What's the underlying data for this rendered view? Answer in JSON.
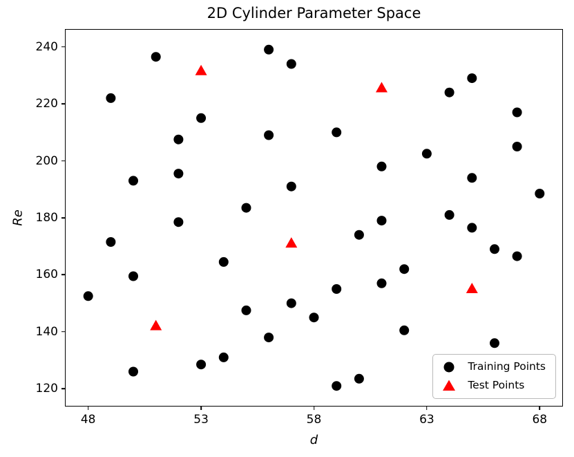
{
  "figure": {
    "title": "2D Cylinder Parameter Space",
    "xlabel": "d",
    "ylabel": "Re"
  },
  "legend": {
    "items": [
      {
        "label": "Training Points",
        "marker": "circle",
        "color": "#000000"
      },
      {
        "label": "Test Points",
        "marker": "triangle",
        "color": "#ff0000"
      }
    ]
  },
  "chart_data": {
    "type": "scatter",
    "title": "2D Cylinder Parameter Space",
    "xlabel": "d",
    "ylabel": "Re",
    "xlim": [
      47,
      69
    ],
    "ylim": [
      114,
      246
    ],
    "xticks": [
      48,
      53,
      58,
      63,
      68
    ],
    "yticks": [
      120,
      140,
      160,
      180,
      200,
      220,
      240
    ],
    "grid": false,
    "legend_position": "lower right",
    "series": [
      {
        "name": "Training Points",
        "marker": "circle",
        "color": "#000000",
        "points": [
          [
            48,
            152.5
          ],
          [
            49,
            222
          ],
          [
            49,
            171.5
          ],
          [
            50,
            193
          ],
          [
            50,
            159.5
          ],
          [
            50,
            126
          ],
          [
            51,
            236.5
          ],
          [
            52,
            207.5
          ],
          [
            52,
            195.5
          ],
          [
            52,
            178.5
          ],
          [
            53,
            215
          ],
          [
            53,
            128.5
          ],
          [
            54,
            164.5
          ],
          [
            54,
            131
          ],
          [
            55,
            183.5
          ],
          [
            55,
            147.5
          ],
          [
            56,
            239
          ],
          [
            56,
            209
          ],
          [
            56,
            138
          ],
          [
            57,
            234
          ],
          [
            57,
            191
          ],
          [
            57,
            150
          ],
          [
            58,
            145
          ],
          [
            59,
            210
          ],
          [
            59,
            155
          ],
          [
            59,
            121
          ],
          [
            60,
            174
          ],
          [
            60,
            123.5
          ],
          [
            61,
            198
          ],
          [
            61,
            179
          ],
          [
            61,
            157
          ],
          [
            62,
            162
          ],
          [
            62,
            140.5
          ],
          [
            63,
            202.5
          ],
          [
            64,
            224
          ],
          [
            64,
            181
          ],
          [
            65,
            229
          ],
          [
            65,
            194
          ],
          [
            65,
            176.5
          ],
          [
            66,
            169
          ],
          [
            66,
            136
          ],
          [
            67,
            217
          ],
          [
            67,
            205
          ],
          [
            67,
            166.5
          ],
          [
            68,
            188.5
          ]
        ]
      },
      {
        "name": "Test Points",
        "marker": "triangle",
        "color": "#ff0000",
        "points": [
          [
            51,
            142
          ],
          [
            53,
            231.5
          ],
          [
            57,
            171
          ],
          [
            61,
            225.5
          ],
          [
            65,
            155
          ]
        ]
      }
    ]
  }
}
